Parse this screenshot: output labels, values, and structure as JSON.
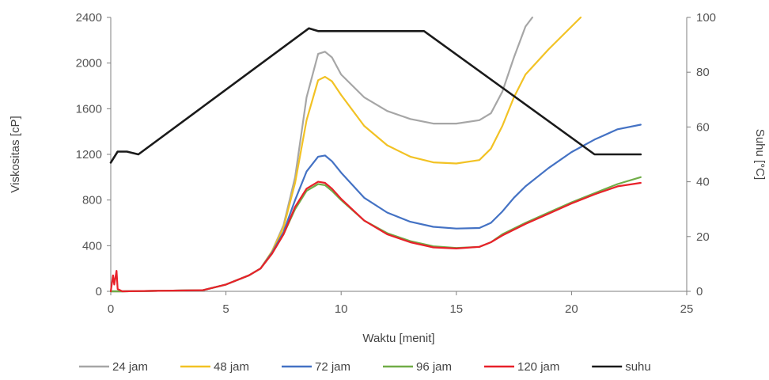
{
  "chart_data": {
    "type": "line",
    "title": "",
    "xlabel": "Waktu [menit]",
    "ylabel": "Viskositas [cP]",
    "y2label": "Suhu [°C]",
    "xlim": [
      0,
      25
    ],
    "ylim": [
      0,
      2400
    ],
    "y2lim": [
      0,
      100
    ],
    "xticks": [
      "0",
      "5",
      "10",
      "15",
      "20",
      "25"
    ],
    "yticks": [
      "0",
      "400",
      "800",
      "1200",
      "1600",
      "2000",
      "2400"
    ],
    "y2ticks": [
      "0",
      "20",
      "40",
      "60",
      "80",
      "100"
    ],
    "grid": false,
    "legend_position": "bottom",
    "colors": {
      "24 jam": "#a6a6a6",
      "48 jam": "#f2c224",
      "72 jam": "#4472c4",
      "96 jam": "#70ad47",
      "120 jam": "#e8212a",
      "suhu": "#1a1a1a"
    },
    "series": [
      {
        "name": "24 jam",
        "axis": "left",
        "x": [
          0,
          0.2,
          0.5,
          4,
          5,
          6,
          6.5,
          7,
          7.5,
          8,
          8.5,
          9,
          9.3,
          9.6,
          10,
          11,
          12,
          13,
          14,
          15,
          16,
          16.5,
          17,
          17.5,
          18,
          18.3
        ],
        "y": [
          0,
          0,
          0,
          10,
          60,
          140,
          200,
          350,
          580,
          1000,
          1700,
          2080,
          2100,
          2050,
          1900,
          1700,
          1580,
          1510,
          1470,
          1470,
          1500,
          1560,
          1750,
          2050,
          2320,
          2400
        ]
      },
      {
        "name": "48 jam",
        "axis": "left",
        "x": [
          0,
          0.2,
          0.5,
          4,
          5,
          6,
          6.5,
          7,
          7.5,
          8,
          8.5,
          9,
          9.3,
          9.6,
          10,
          11,
          12,
          13,
          14,
          15,
          16,
          16.5,
          17,
          17.5,
          18,
          19,
          20,
          20.4
        ],
        "y": [
          0,
          0,
          0,
          10,
          60,
          140,
          200,
          350,
          560,
          950,
          1500,
          1850,
          1880,
          1840,
          1720,
          1450,
          1280,
          1180,
          1130,
          1120,
          1150,
          1250,
          1450,
          1700,
          1900,
          2120,
          2320,
          2400
        ]
      },
      {
        "name": "72 jam",
        "axis": "left",
        "x": [
          0,
          0.2,
          0.5,
          4,
          5,
          6,
          6.5,
          7,
          7.5,
          8,
          8.5,
          9,
          9.3,
          9.6,
          10,
          11,
          12,
          13,
          14,
          15,
          16,
          16.5,
          17,
          17.5,
          18,
          19,
          20,
          21,
          22,
          23
        ],
        "y": [
          0,
          0,
          0,
          10,
          60,
          140,
          200,
          340,
          520,
          800,
          1050,
          1180,
          1190,
          1140,
          1040,
          820,
          690,
          610,
          565,
          550,
          555,
          600,
          700,
          820,
          920,
          1080,
          1220,
          1330,
          1420,
          1460
        ]
      },
      {
        "name": "96 jam",
        "axis": "left",
        "x": [
          0,
          0.2,
          0.5,
          4,
          5,
          6,
          6.5,
          7,
          7.5,
          8,
          8.5,
          9,
          9.3,
          9.6,
          10,
          11,
          12,
          13,
          14,
          15,
          16,
          16.5,
          17,
          18,
          19,
          20,
          21,
          22,
          23
        ],
        "y": [
          0,
          0,
          0,
          10,
          60,
          140,
          200,
          330,
          500,
          720,
          880,
          940,
          930,
          880,
          800,
          620,
          510,
          440,
          395,
          380,
          390,
          430,
          500,
          600,
          690,
          780,
          860,
          940,
          1000
        ]
      },
      {
        "name": "120 jam",
        "axis": "left",
        "x": [
          0,
          0.1,
          0.15,
          0.25,
          0.3,
          0.5,
          4,
          5,
          6,
          6.5,
          7,
          7.5,
          8,
          8.5,
          9,
          9.3,
          9.6,
          10,
          11,
          12,
          13,
          14,
          15,
          16,
          16.5,
          17,
          18,
          19,
          20,
          21,
          22,
          23
        ],
        "y": [
          0,
          140,
          60,
          180,
          20,
          0,
          10,
          60,
          140,
          200,
          330,
          500,
          740,
          900,
          960,
          950,
          900,
          810,
          620,
          500,
          430,
          385,
          375,
          390,
          430,
          490,
          590,
          680,
          770,
          850,
          920,
          950
        ]
      },
      {
        "name": "suhu",
        "axis": "right",
        "x": [
          0,
          0.3,
          0.7,
          1.2,
          8.6,
          9,
          13.6,
          21,
          21.2,
          23
        ],
        "y": [
          47,
          51,
          51,
          50,
          96,
          95,
          95,
          50,
          50,
          50
        ]
      }
    ]
  }
}
